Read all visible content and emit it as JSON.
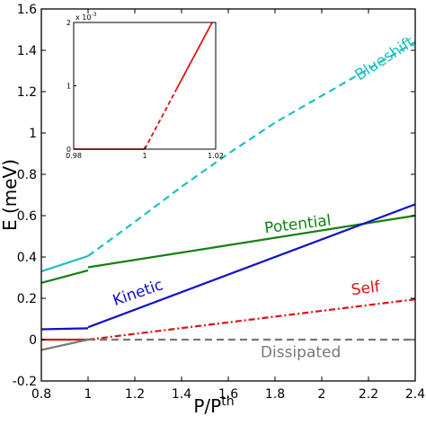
{
  "chart_data": [
    {
      "type": "line",
      "xlabel": "P/P",
      "xlabel_sup": "th",
      "ylabel": "E (meV)",
      "xlim": [
        0.8,
        2.4
      ],
      "ylim": [
        -0.2,
        1.6
      ],
      "xticks": [
        "0.8",
        "1",
        "1.2",
        "1.4",
        "1.6",
        "1.8",
        "2",
        "2.2",
        "2.4"
      ],
      "yticks": [
        "-0.2",
        "0",
        "0.2",
        "0.4",
        "0.6",
        "0.8",
        "1",
        "1.2",
        "1.4",
        "1.6"
      ],
      "grid": false,
      "series": [
        {
          "name": "Blueshift",
          "color": "#1fbfbf",
          "segments": [
            {
              "style": "solid",
              "x": [
                0.8,
                1.0
              ],
              "y": [
                0.33,
                0.405
              ]
            },
            {
              "style": "dashed",
              "x": [
                1.0,
                1.2,
                1.4,
                1.6,
                1.8,
                2.0,
                2.2,
                2.4
              ],
              "y": [
                0.405,
                0.57,
                0.74,
                0.9,
                1.05,
                1.18,
                1.31,
                1.44
              ]
            }
          ]
        },
        {
          "name": "Potential",
          "color": "#128012",
          "segments": [
            {
              "style": "solid",
              "x": [
                0.8,
                1.0
              ],
              "y": [
                0.275,
                0.335
              ]
            },
            {
              "style": "solid",
              "x": [
                1.0,
                2.4
              ],
              "y": [
                0.35,
                0.6
              ]
            }
          ]
        },
        {
          "name": "Kinetic",
          "color": "#1010c8",
          "segments": [
            {
              "style": "solid",
              "x": [
                0.8,
                1.0
              ],
              "y": [
                0.05,
                0.055
              ]
            },
            {
              "style": "solid",
              "x": [
                1.0,
                2.4
              ],
              "y": [
                0.06,
                0.655
              ]
            }
          ]
        },
        {
          "name": "Self",
          "color": "#dd1111",
          "segments": [
            {
              "style": "solid",
              "x": [
                0.8,
                1.0
              ],
              "y": [
                0.0,
                0.0
              ]
            },
            {
              "style": "dashdot",
              "x": [
                1.0,
                2.4
              ],
              "y": [
                0.0,
                0.195
              ]
            }
          ]
        },
        {
          "name": "Dissipated",
          "color": "#777777",
          "segments": [
            {
              "style": "solid",
              "x": [
                0.8,
                1.0
              ],
              "y": [
                -0.05,
                0.0
              ]
            },
            {
              "style": "dashed",
              "x": [
                1.0,
                2.4
              ],
              "y": [
                0.0,
                0.0
              ]
            }
          ]
        }
      ]
    },
    {
      "type": "line",
      "xlim": [
        0.98,
        1.02
      ],
      "ylim": [
        0,
        2
      ],
      "xticks": [
        "0.98",
        "1",
        "1.02"
      ],
      "yticks": [
        "0",
        "1",
        "2"
      ],
      "yscale_label": "x 10",
      "yscale_exp": "-3",
      "series": [
        {
          "color": "#dd1111",
          "segments": [
            {
              "style": "solid",
              "x": [
                0.98,
                1.0
              ],
              "y": [
                0,
                0
              ]
            },
            {
              "style": "dashed",
              "x": [
                1.0,
                1.009
              ],
              "y": [
                0,
                0.95
              ]
            },
            {
              "style": "solid",
              "x": [
                1.009,
                1.019
              ],
              "y": [
                0.95,
                2.0
              ]
            }
          ]
        }
      ]
    }
  ]
}
